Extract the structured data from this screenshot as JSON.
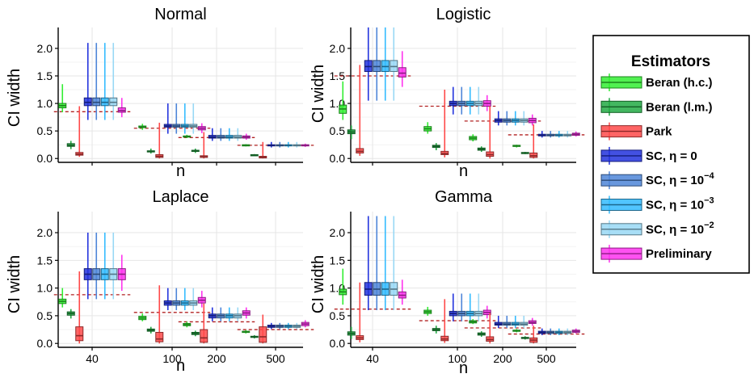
{
  "chart_data": {
    "type": "box",
    "x_label": "n",
    "y_label": "CI width",
    "x_categories": [
      "40",
      "100",
      "200",
      "500"
    ],
    "y_ticks": [
      0.0,
      0.5,
      1.0,
      1.5,
      2.0
    ],
    "y_tick_labels": [
      "0.0",
      "0.5",
      "1.0",
      "1.5",
      "2.0"
    ],
    "ylim": [
      -0.07,
      2.38
    ],
    "grid": true,
    "legend": {
      "title": "Estimators",
      "position": "right",
      "entries": [
        {
          "key": "beran_hc",
          "label": "Beran (h.c.)",
          "color": "#33ee33"
        },
        {
          "key": "beran_lm",
          "label": "Beran (l.m.)",
          "color": "#22aa44"
        },
        {
          "key": "park",
          "label": "Park",
          "color": "#ff4a4a"
        },
        {
          "key": "sc0",
          "label": "SC, η = 0",
          "color": "#2233dd"
        },
        {
          "key": "sc4",
          "label": "SC, η = 10",
          "sup": "−4",
          "color": "#4f86d8"
        },
        {
          "key": "sc3",
          "label": "SC, η = 10",
          "sup": "−3",
          "color": "#33bbff"
        },
        {
          "key": "sc2",
          "label": "SC, η = 10",
          "sup": "−2",
          "color": "#99d8f5"
        },
        {
          "key": "prelim",
          "label": "Preliminary",
          "color": "#ff33ee"
        }
      ]
    },
    "panels": [
      {
        "title": "Normal",
        "reference": [
          0.85,
          0.55,
          0.38,
          0.24
        ],
        "boxes": [
          [
            [
              0.92,
              0.96,
              1.0,
              0.84,
              1.35
            ],
            [
              0.22,
              0.24,
              0.27,
              0.17,
              0.32
            ],
            [
              0.06,
              0.08,
              0.11,
              0.03,
              0.95
            ],
            [
              0.96,
              1.02,
              1.1,
              0.7,
              2.1
            ],
            [
              0.96,
              1.02,
              1.1,
              0.7,
              2.1
            ],
            [
              0.96,
              1.02,
              1.1,
              0.7,
              2.1
            ],
            [
              0.96,
              1.02,
              1.1,
              0.7,
              2.1
            ],
            [
              0.84,
              0.87,
              0.92,
              0.75,
              1.1
            ]
          ],
          [
            [
              0.56,
              0.57,
              0.59,
              0.52,
              0.63
            ],
            [
              0.12,
              0.13,
              0.14,
              0.09,
              0.18
            ],
            [
              0.02,
              0.04,
              0.07,
              0.0,
              0.65
            ],
            [
              0.57,
              0.59,
              0.62,
              0.45,
              1.0
            ],
            [
              0.57,
              0.59,
              0.62,
              0.45,
              1.0
            ],
            [
              0.57,
              0.59,
              0.62,
              0.45,
              1.0
            ],
            [
              0.57,
              0.59,
              0.62,
              0.45,
              1.0
            ],
            [
              0.52,
              0.55,
              0.58,
              0.46,
              0.64
            ]
          ],
          [
            [
              0.39,
              0.4,
              0.41,
              0.37,
              0.43
            ],
            [
              0.13,
              0.14,
              0.15,
              0.1,
              0.18
            ],
            [
              0.02,
              0.03,
              0.05,
              0.0,
              0.48
            ],
            [
              0.37,
              0.39,
              0.42,
              0.32,
              0.55
            ],
            [
              0.37,
              0.39,
              0.42,
              0.32,
              0.55
            ],
            [
              0.37,
              0.39,
              0.42,
              0.32,
              0.55
            ],
            [
              0.37,
              0.39,
              0.42,
              0.32,
              0.55
            ],
            [
              0.37,
              0.39,
              0.41,
              0.34,
              0.45
            ]
          ],
          [
            [
              0.23,
              0.24,
              0.25,
              0.22,
              0.26
            ],
            [
              0.06,
              0.065,
              0.07,
              0.05,
              0.08
            ],
            [
              0.01,
              0.02,
              0.04,
              0.0,
              0.3
            ],
            [
              0.23,
              0.24,
              0.25,
              0.2,
              0.3
            ],
            [
              0.23,
              0.24,
              0.25,
              0.2,
              0.3
            ],
            [
              0.23,
              0.24,
              0.25,
              0.2,
              0.3
            ],
            [
              0.23,
              0.24,
              0.25,
              0.2,
              0.3
            ],
            [
              0.23,
              0.24,
              0.25,
              0.21,
              0.27
            ]
          ]
        ]
      },
      {
        "title": "Logistic",
        "reference": [
          1.5,
          0.95,
          0.68,
          0.43
        ],
        "boxes": [
          [
            [
              0.82,
              0.9,
              0.97,
              0.7,
              1.4
            ],
            [
              0.45,
              0.48,
              0.52,
              0.35,
              0.6
            ],
            [
              0.1,
              0.13,
              0.18,
              0.05,
              1.7
            ],
            [
              1.58,
              1.67,
              1.78,
              1.05,
              2.4
            ],
            [
              1.58,
              1.67,
              1.78,
              1.05,
              2.4
            ],
            [
              1.58,
              1.67,
              1.78,
              1.05,
              2.4
            ],
            [
              1.58,
              1.67,
              1.78,
              1.05,
              2.4
            ],
            [
              1.48,
              1.55,
              1.65,
              1.3,
              1.95
            ]
          ],
          [
            [
              0.5,
              0.54,
              0.58,
              0.45,
              0.66
            ],
            [
              0.2,
              0.22,
              0.24,
              0.15,
              0.28
            ],
            [
              0.07,
              0.09,
              0.13,
              0.02,
              1.25
            ],
            [
              0.96,
              1.0,
              1.04,
              0.8,
              1.3
            ],
            [
              0.96,
              1.0,
              1.04,
              0.8,
              1.3
            ],
            [
              0.96,
              1.0,
              1.04,
              0.8,
              1.3
            ],
            [
              0.96,
              1.0,
              1.04,
              0.8,
              1.3
            ],
            [
              0.95,
              1.0,
              1.05,
              0.86,
              1.15
            ]
          ],
          [
            [
              0.34,
              0.37,
              0.4,
              0.31,
              0.44
            ],
            [
              0.15,
              0.17,
              0.19,
              0.12,
              0.22
            ],
            [
              0.04,
              0.07,
              0.12,
              0.0,
              0.95
            ],
            [
              0.66,
              0.69,
              0.72,
              0.6,
              0.86
            ],
            [
              0.66,
              0.69,
              0.72,
              0.6,
              0.86
            ],
            [
              0.66,
              0.69,
              0.72,
              0.6,
              0.86
            ],
            [
              0.66,
              0.69,
              0.72,
              0.6,
              0.86
            ],
            [
              0.65,
              0.69,
              0.73,
              0.6,
              0.8
            ]
          ],
          [
            [
              0.22,
              0.23,
              0.24,
              0.2,
              0.25
            ],
            [
              0.09,
              0.1,
              0.11,
              0.08,
              0.12
            ],
            [
              0.02,
              0.05,
              0.1,
              0.0,
              0.62
            ],
            [
              0.41,
              0.42,
              0.44,
              0.38,
              0.5
            ],
            [
              0.41,
              0.42,
              0.44,
              0.38,
              0.5
            ],
            [
              0.41,
              0.42,
              0.44,
              0.38,
              0.5
            ],
            [
              0.41,
              0.42,
              0.44,
              0.38,
              0.5
            ],
            [
              0.42,
              0.44,
              0.46,
              0.4,
              0.49
            ]
          ]
        ]
      },
      {
        "title": "Laplace",
        "reference": [
          0.88,
          0.56,
          0.39,
          0.25
        ],
        "boxes": [
          [
            [
              0.72,
              0.76,
              0.8,
              0.65,
              1.0
            ],
            [
              0.51,
              0.54,
              0.57,
              0.45,
              0.62
            ],
            [
              0.05,
              0.14,
              0.3,
              0.0,
              1.3
            ],
            [
              1.15,
              1.25,
              1.35,
              0.8,
              2.0
            ],
            [
              1.15,
              1.25,
              1.35,
              0.8,
              2.0
            ],
            [
              1.15,
              1.25,
              1.35,
              0.8,
              2.0
            ],
            [
              1.15,
              1.25,
              1.35,
              0.8,
              2.0
            ],
            [
              1.15,
              1.25,
              1.35,
              0.95,
              1.6
            ]
          ],
          [
            [
              0.43,
              0.46,
              0.49,
              0.4,
              0.54
            ],
            [
              0.22,
              0.24,
              0.26,
              0.18,
              0.3
            ],
            [
              0.03,
              0.08,
              0.2,
              0.0,
              1.05
            ],
            [
              0.69,
              0.73,
              0.77,
              0.6,
              1.0
            ],
            [
              0.69,
              0.73,
              0.77,
              0.6,
              1.0
            ],
            [
              0.69,
              0.73,
              0.77,
              0.6,
              1.0
            ],
            [
              0.69,
              0.73,
              0.77,
              0.6,
              1.0
            ],
            [
              0.73,
              0.78,
              0.83,
              0.65,
              0.95
            ]
          ],
          [
            [
              0.32,
              0.34,
              0.36,
              0.29,
              0.39
            ],
            [
              0.16,
              0.18,
              0.2,
              0.13,
              0.23
            ],
            [
              0.02,
              0.1,
              0.25,
              0.0,
              0.72
            ],
            [
              0.46,
              0.5,
              0.53,
              0.4,
              0.65
            ],
            [
              0.46,
              0.5,
              0.53,
              0.4,
              0.65
            ],
            [
              0.46,
              0.5,
              0.53,
              0.4,
              0.65
            ],
            [
              0.46,
              0.5,
              0.53,
              0.4,
              0.65
            ],
            [
              0.51,
              0.55,
              0.59,
              0.45,
              0.65
            ]
          ],
          [
            [
              0.2,
              0.21,
              0.22,
              0.18,
              0.24
            ],
            [
              0.11,
              0.12,
              0.13,
              0.09,
              0.15
            ],
            [
              0.02,
              0.12,
              0.3,
              0.0,
              0.52
            ],
            [
              0.29,
              0.31,
              0.33,
              0.26,
              0.37
            ],
            [
              0.29,
              0.31,
              0.33,
              0.26,
              0.37
            ],
            [
              0.29,
              0.31,
              0.33,
              0.26,
              0.37
            ],
            [
              0.29,
              0.31,
              0.33,
              0.26,
              0.37
            ],
            [
              0.32,
              0.35,
              0.38,
              0.29,
              0.42
            ]
          ]
        ]
      },
      {
        "title": "Gamma",
        "reference": [
          0.62,
          0.41,
          0.28,
          0.17
        ],
        "boxes": [
          [
            [
              0.88,
              0.93,
              0.98,
              0.7,
              1.35
            ],
            [
              0.15,
              0.18,
              0.21,
              0.08,
              0.3
            ],
            [
              0.07,
              0.1,
              0.14,
              0.02,
              1.1
            ],
            [
              0.87,
              0.98,
              1.1,
              0.6,
              2.3
            ],
            [
              0.87,
              0.98,
              1.1,
              0.6,
              2.3
            ],
            [
              0.87,
              0.98,
              1.1,
              0.6,
              2.3
            ],
            [
              0.87,
              0.98,
              1.1,
              0.6,
              2.3
            ],
            [
              0.82,
              0.87,
              0.93,
              0.7,
              1.15
            ]
          ],
          [
            [
              0.54,
              0.57,
              0.6,
              0.5,
              0.66
            ],
            [
              0.23,
              0.25,
              0.27,
              0.18,
              0.32
            ],
            [
              0.05,
              0.08,
              0.13,
              0.01,
              0.8
            ],
            [
              0.5,
              0.54,
              0.58,
              0.4,
              0.9
            ],
            [
              0.5,
              0.54,
              0.58,
              0.4,
              0.9
            ],
            [
              0.5,
              0.54,
              0.58,
              0.4,
              0.9
            ],
            [
              0.5,
              0.54,
              0.58,
              0.4,
              0.9
            ],
            [
              0.52,
              0.56,
              0.6,
              0.45,
              0.68
            ]
          ],
          [
            [
              0.37,
              0.39,
              0.41,
              0.35,
              0.44
            ],
            [
              0.15,
              0.17,
              0.19,
              0.12,
              0.22
            ],
            [
              0.04,
              0.07,
              0.12,
              0.0,
              0.55
            ],
            [
              0.33,
              0.35,
              0.38,
              0.28,
              0.5
            ],
            [
              0.33,
              0.35,
              0.38,
              0.28,
              0.5
            ],
            [
              0.33,
              0.35,
              0.38,
              0.28,
              0.5
            ],
            [
              0.33,
              0.35,
              0.38,
              0.28,
              0.5
            ],
            [
              0.36,
              0.38,
              0.41,
              0.32,
              0.46
            ]
          ],
          [
            [
              0.22,
              0.23,
              0.24,
              0.2,
              0.26
            ],
            [
              0.09,
              0.1,
              0.11,
              0.07,
              0.13
            ],
            [
              0.02,
              0.06,
              0.1,
              0.0,
              0.32
            ],
            [
              0.18,
              0.2,
              0.22,
              0.15,
              0.27
            ],
            [
              0.18,
              0.2,
              0.22,
              0.15,
              0.27
            ],
            [
              0.18,
              0.2,
              0.22,
              0.15,
              0.27
            ],
            [
              0.18,
              0.2,
              0.22,
              0.15,
              0.27
            ],
            [
              0.2,
              0.22,
              0.24,
              0.18,
              0.27
            ]
          ]
        ]
      }
    ]
  }
}
